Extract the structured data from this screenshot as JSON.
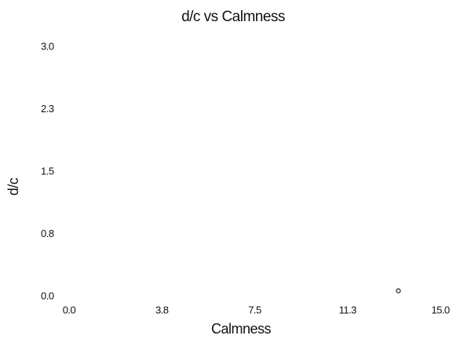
{
  "chart_data": {
    "type": "scatter",
    "title": "d/c vs Calmness",
    "xlabel": "Calmness",
    "ylabel": "d/c",
    "series": [
      {
        "x": [
          13.3
        ],
        "values": [
          0.07
        ],
        "color": "#333333"
      }
    ],
    "xlim": [
      0,
      15
    ],
    "ylim": [
      0,
      3
    ],
    "xticks": [
      {
        "value": 0,
        "label": "0.0"
      },
      {
        "value": 3.75,
        "label": "3.8"
      },
      7.5,
      {
        "value": 11.25,
        "label": "11.3"
      },
      {
        "value": 15,
        "label": "15.0"
      }
    ],
    "yticks": [
      {
        "value": 0,
        "label": "0.0"
      },
      {
        "value": 0.75,
        "label": "0.8"
      },
      1.5,
      {
        "value": 2.25,
        "label": "2.3"
      },
      {
        "value": 3,
        "label": "3.0"
      }
    ],
    "grid": false
  }
}
